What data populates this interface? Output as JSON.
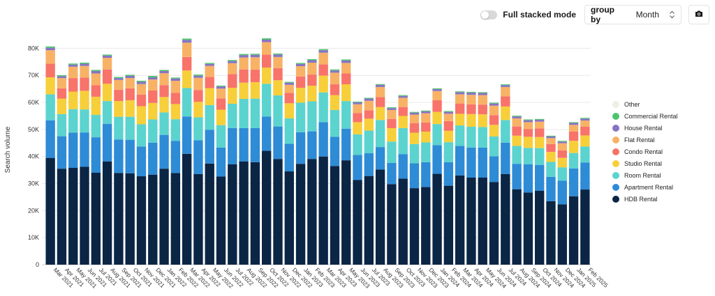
{
  "controls": {
    "full_stacked_label": "Full stacked mode",
    "full_stacked_on": false,
    "group_by_label": "group by",
    "group_by_value": "Month"
  },
  "chart_data": {
    "type": "bar",
    "stacked": true,
    "ylabel": "Search volume",
    "xlabel": "",
    "ylim": [
      0,
      85000
    ],
    "yticks": [
      "0",
      "10K",
      "20K",
      "30K",
      "40K",
      "50K",
      "60K",
      "70K",
      "80K"
    ],
    "ytick_values": [
      0,
      10000,
      20000,
      30000,
      40000,
      50000,
      60000,
      70000,
      80000
    ],
    "grid": true,
    "legend_position": "right",
    "categories": [
      "Mar 2021",
      "Apr 2021",
      "May 2021",
      "Jun 2021",
      "Jul 2021",
      "Aug 2021",
      "Sep 2021",
      "Oct 2021",
      "Nov 2021",
      "Dec 2021",
      "Jan 2022",
      "Feb 2022",
      "Mar 2022",
      "Apr 2022",
      "May 2022",
      "Jun 2022",
      "Jul 2022",
      "Aug 2022",
      "Sep 2022",
      "Oct 2022",
      "Nov 2022",
      "Dec 2022",
      "Jan 2023",
      "Feb 2023",
      "Mar 2023",
      "Apr 2023",
      "May 2023",
      "Jun 2023",
      "Jul 2023",
      "Aug 2023",
      "Sep 2023",
      "Oct 2023",
      "Nov 2023",
      "Dec 2023",
      "Jan 2024",
      "Feb 2024",
      "Mar 2024",
      "Apr 2024",
      "May 2024",
      "Jun 2024",
      "Jul 2024",
      "Aug 2024",
      "Sep 2024",
      "Oct 2024",
      "Nov 2024",
      "Dec 2024",
      "Jan 2025",
      "Feb 2025"
    ],
    "series": [
      {
        "name": "HDB Rental",
        "color": "#0b2545",
        "values": [
          39500,
          35500,
          35800,
          36200,
          34000,
          38200,
          33900,
          33800,
          32700,
          33300,
          35500,
          33900,
          41000,
          33500,
          37400,
          32600,
          37100,
          38200,
          37900,
          42100,
          39100,
          34500,
          37300,
          39100,
          40000,
          36500,
          38600,
          31300,
          32800,
          35200,
          29800,
          31800,
          28300,
          28700,
          33600,
          29200,
          33000,
          32200,
          32200,
          30600,
          33500,
          27900,
          26700,
          27300,
          23500,
          22300,
          25300,
          27800
        ]
      },
      {
        "name": "Apartment Rental",
        "color": "#2e8bd6",
        "values": [
          13900,
          12000,
          13000,
          12700,
          13100,
          13900,
          12400,
          12400,
          11000,
          11800,
          12500,
          11900,
          13800,
          12500,
          12500,
          10700,
          13400,
          12300,
          12600,
          12700,
          12000,
          10200,
          11700,
          10200,
          12700,
          10800,
          11700,
          9300,
          8400,
          8300,
          7800,
          9100,
          9200,
          9200,
          10600,
          8700,
          10900,
          11100,
          11100,
          9500,
          11600,
          9400,
          10400,
          9600,
          9000,
          8800,
          10300,
          10000
        ]
      },
      {
        "name": "Room Rental",
        "color": "#5bd3cf",
        "values": [
          9600,
          8200,
          8700,
          8500,
          8300,
          8400,
          8400,
          8500,
          8200,
          8600,
          8300,
          8000,
          10500,
          8500,
          9100,
          8300,
          9000,
          10800,
          10900,
          12100,
          11500,
          9400,
          10900,
          11100,
          11000,
          9900,
          10200,
          7600,
          8400,
          10000,
          7900,
          9600,
          7100,
          7300,
          7800,
          7400,
          7600,
          7700,
          7600,
          7300,
          8400,
          6600,
          6100,
          6200,
          5500,
          4900,
          5700,
          5900
        ]
      },
      {
        "name": "Studio Rental",
        "color": "#f7cf3a",
        "values": [
          6300,
          5700,
          6500,
          6900,
          6700,
          6400,
          5800,
          6100,
          6700,
          6100,
          5700,
          5600,
          6500,
          5700,
          6300,
          5700,
          5900,
          6000,
          6100,
          6000,
          5600,
          5600,
          5500,
          5800,
          6200,
          5500,
          6200,
          4500,
          4400,
          4800,
          5000,
          4500,
          4200,
          4000,
          4500,
          4200,
          4300,
          4700,
          4700,
          4300,
          5000,
          3800,
          4100,
          4100,
          3700,
          3500,
          4500,
          4100
        ]
      },
      {
        "name": "Condo Rental",
        "color": "#f8736a",
        "values": [
          5000,
          3800,
          5000,
          4900,
          4300,
          5300,
          4200,
          4400,
          4300,
          4600,
          4400,
          4100,
          5000,
          4400,
          4100,
          4200,
          5100,
          4900,
          4600,
          4800,
          4500,
          3800,
          4200,
          4100,
          4200,
          4000,
          4000,
          3400,
          3100,
          3700,
          3400,
          3300,
          3500,
          3400,
          4300,
          3600,
          3800,
          3600,
          3600,
          3600,
          3700,
          3400,
          2800,
          3200,
          2900,
          2800,
          3400,
          3200
        ]
      },
      {
        "name": "Flat Rental",
        "color": "#f8b266",
        "values": [
          5000,
          3800,
          4200,
          4300,
          4300,
          4300,
          3600,
          3800,
          3900,
          4100,
          4400,
          4500,
          5300,
          4500,
          4100,
          3600,
          4000,
          4400,
          4600,
          4600,
          4100,
          3000,
          3800,
          4400,
          4300,
          4300,
          3900,
          3200,
          3500,
          3700,
          3300,
          3400,
          3200,
          3400,
          3400,
          2700,
          3400,
          3500,
          3500,
          3500,
          3500,
          3000,
          2600,
          2500,
          2200,
          2600,
          2500,
          2300
        ]
      },
      {
        "name": "House Rental",
        "color": "#8774c4",
        "values": [
          900,
          700,
          800,
          800,
          900,
          800,
          700,
          800,
          800,
          800,
          800,
          800,
          1000,
          800,
          700,
          800,
          800,
          900,
          900,
          900,
          900,
          800,
          800,
          900,
          900,
          800,
          900,
          700,
          800,
          800,
          700,
          700,
          700,
          700,
          700,
          700,
          800,
          800,
          800,
          800,
          700,
          700,
          700,
          700,
          600,
          600,
          700,
          700
        ]
      },
      {
        "name": "Commercial Rental",
        "color": "#4cc46f",
        "values": [
          500,
          400,
          400,
          400,
          400,
          400,
          400,
          400,
          400,
          500,
          400,
          400,
          500,
          400,
          400,
          300,
          400,
          400,
          400,
          500,
          400,
          300,
          400,
          400,
          400,
          400,
          400,
          300,
          300,
          300,
          300,
          300,
          300,
          300,
          300,
          300,
          300,
          300,
          300,
          300,
          300,
          300,
          300,
          300,
          300,
          300,
          300,
          300
        ]
      },
      {
        "name": "Other",
        "color": "#f0ede6",
        "values": [
          100,
          100,
          100,
          100,
          100,
          100,
          100,
          100,
          100,
          100,
          100,
          100,
          100,
          100,
          100,
          100,
          100,
          100,
          100,
          100,
          100,
          100,
          100,
          100,
          100,
          100,
          100,
          100,
          100,
          100,
          100,
          100,
          100,
          100,
          100,
          100,
          100,
          100,
          100,
          100,
          100,
          100,
          100,
          100,
          100,
          100,
          100,
          100
        ]
      }
    ],
    "legend_order": [
      "Other",
      "Commercial Rental",
      "House Rental",
      "Flat Rental",
      "Condo Rental",
      "Studio Rental",
      "Room Rental",
      "Apartment Rental",
      "HDB Rental"
    ],
    "grid_color": "#e9e9e9"
  }
}
